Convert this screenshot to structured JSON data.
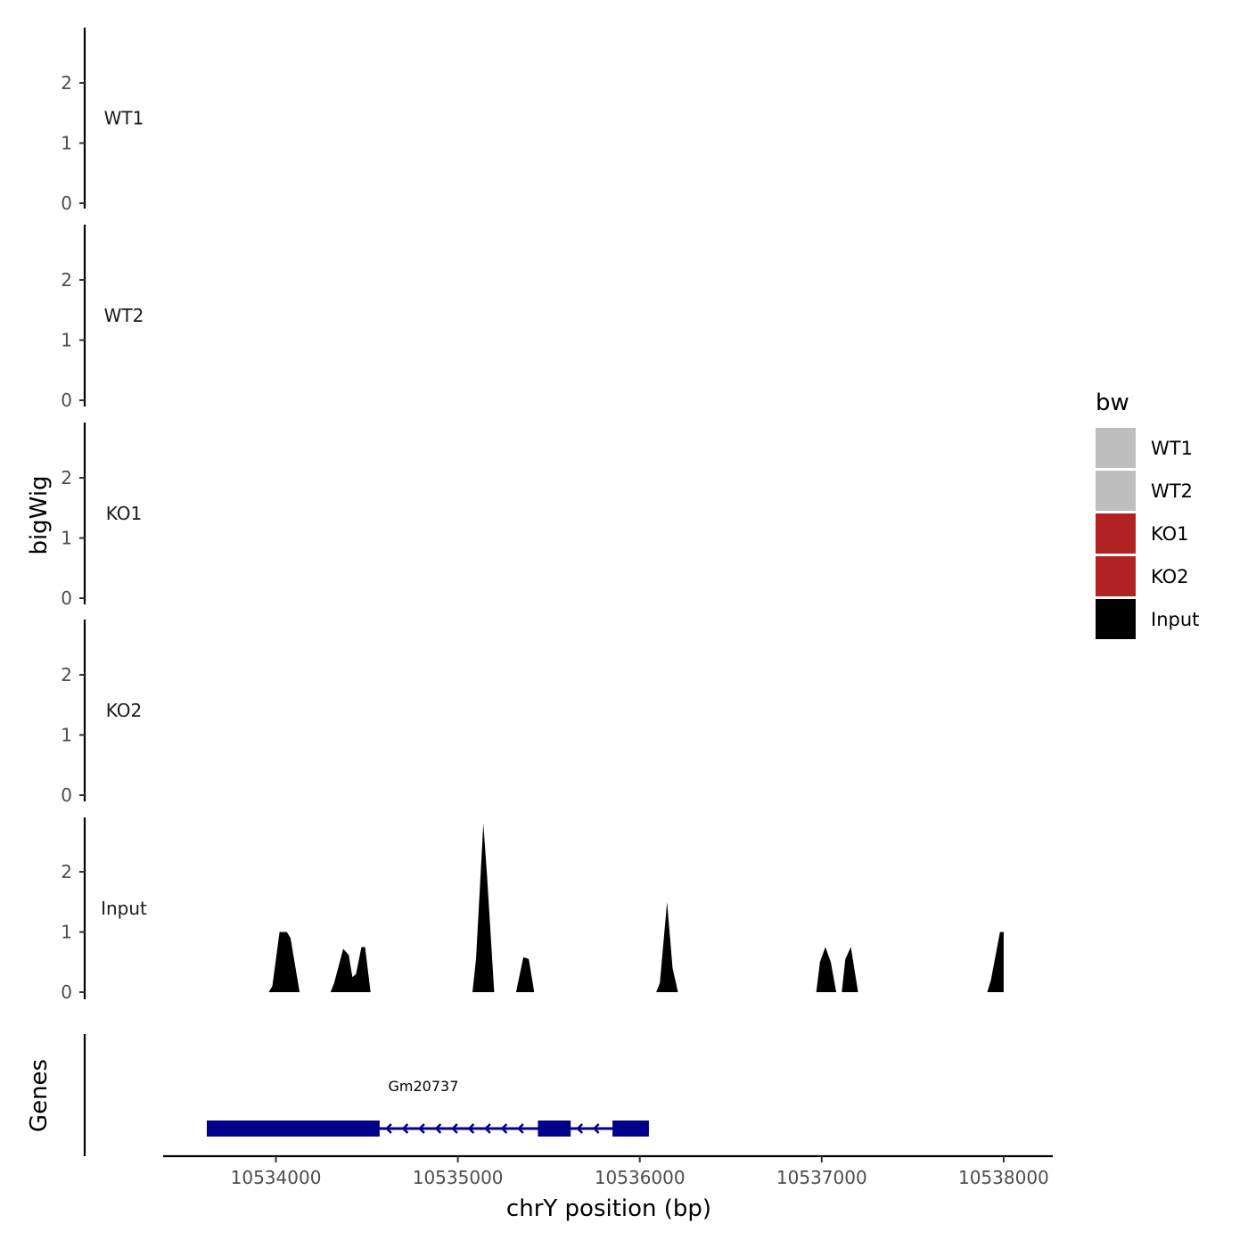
{
  "chart_data": {
    "type": "area",
    "xlabel": "chrY position (bp)",
    "ylabel": "bigWig",
    "genes_label": "Genes",
    "xlim": [
      10533380,
      10538270
    ],
    "x_ticks": [
      10534000,
      10535000,
      10536000,
      10537000,
      10538000
    ],
    "x_tick_labels": [
      "10534000",
      "10535000",
      "10536000",
      "10537000",
      "10538000"
    ],
    "ylim": [
      0,
      2.9
    ],
    "y_ticks": [
      0,
      1,
      2
    ],
    "y_tick_labels": [
      "0",
      "1",
      "2"
    ],
    "legend": {
      "title": "bw",
      "position": "right",
      "entries": [
        {
          "label": "WT1",
          "color": "#bebebe"
        },
        {
          "label": "WT2",
          "color": "#bebebe"
        },
        {
          "label": "KO1",
          "color": "#b22222"
        },
        {
          "label": "KO2",
          "color": "#b22222"
        },
        {
          "label": "Input",
          "color": "#000000"
        }
      ]
    },
    "series": [
      {
        "name": "WT1",
        "color": "#bebebe",
        "x": [],
        "y": []
      },
      {
        "name": "WT2",
        "color": "#bebebe",
        "x": [],
        "y": []
      },
      {
        "name": "KO1",
        "color": "#b22222",
        "x": [],
        "y": []
      },
      {
        "name": "KO2",
        "color": "#b22222",
        "x": [],
        "y": []
      },
      {
        "name": "Input",
        "color": "#000000",
        "x": [
          10533960,
          10533980,
          10534020,
          10534060,
          10534080,
          10534130,
          10534300,
          10534320,
          10534370,
          10534400,
          10534420,
          10534440,
          10534470,
          10534490,
          10534520,
          10535080,
          10535100,
          10535140,
          10535160,
          10535200,
          10535320,
          10535360,
          10535390,
          10535420,
          10536090,
          10536110,
          10536150,
          10536180,
          10536210,
          10536970,
          10536990,
          10537020,
          10537050,
          10537080,
          10537110,
          10537130,
          10537160,
          10537200,
          10537910,
          10537930,
          10537980,
          10538000
        ],
        "y": [
          0,
          0.1,
          1.0,
          1.0,
          0.9,
          0,
          0,
          0.15,
          0.72,
          0.62,
          0.25,
          0.3,
          0.75,
          0.75,
          0,
          0,
          0.55,
          2.8,
          1.95,
          0,
          0,
          0.58,
          0.55,
          0,
          0,
          0.15,
          1.5,
          0.4,
          0,
          0,
          0.5,
          0.75,
          0.5,
          0,
          0,
          0.55,
          0.75,
          0,
          0,
          0.2,
          1.0,
          1.0
        ]
      }
    ],
    "genes": [
      {
        "name": "Gm20737",
        "strand": "-",
        "color": "#00008b",
        "start": 10533620,
        "end": 10536050,
        "exons": [
          [
            10533620,
            10534570
          ],
          [
            10535440,
            10535620
          ],
          [
            10535850,
            10536050
          ]
        ]
      }
    ]
  }
}
